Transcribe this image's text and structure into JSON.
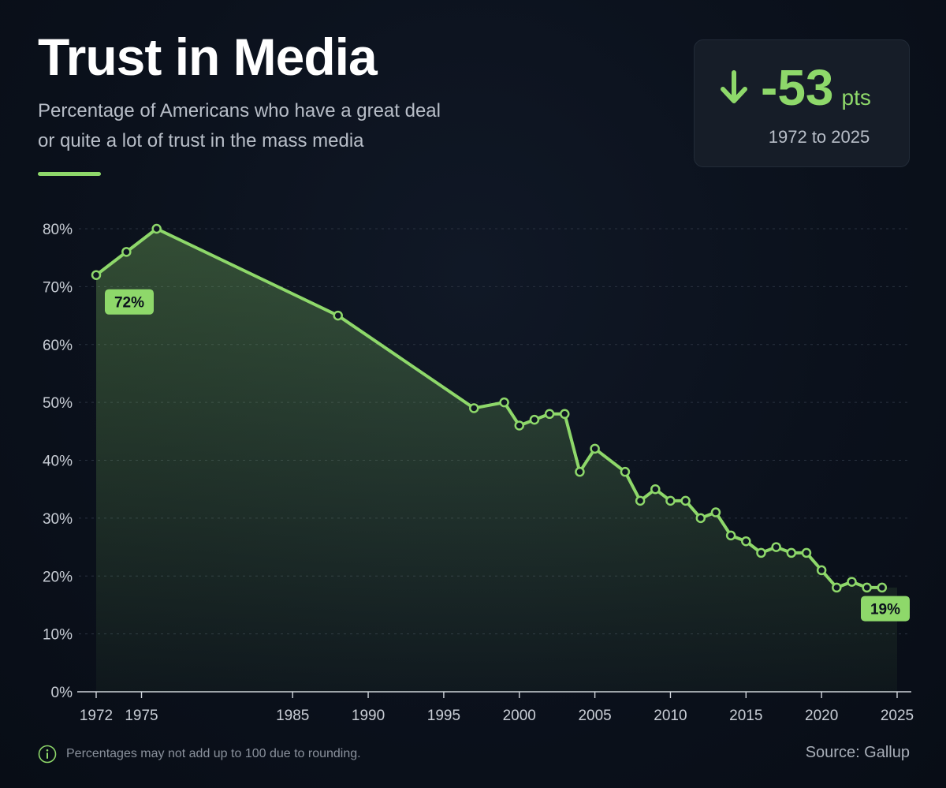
{
  "header": {
    "title": "Trust in Media",
    "subtitle_line1": "Percentage of Americans who have a great deal",
    "subtitle_line2": "or quite a lot of trust in the mass media"
  },
  "stat_card": {
    "icon": "arrow-down-icon",
    "value": "-53",
    "unit": "pts",
    "period": "1972 to 2025"
  },
  "footer": {
    "note_icon": "info-icon",
    "note": "Percentages may not add up to 100 due to rounding.",
    "source": "Source: Gallup"
  },
  "colors": {
    "background": "#0b111c",
    "accent": "#8ed86a",
    "text_primary": "#ffffff",
    "text_secondary": "#b8bec8"
  },
  "chart_data": {
    "type": "area",
    "ylim": [
      0,
      80
    ],
    "xlim": [
      1972,
      2025
    ],
    "yticks": [
      0,
      10,
      20,
      30,
      40,
      50,
      60,
      70,
      80
    ],
    "ytick_labels": [
      "0%",
      "10%",
      "20%",
      "30%",
      "40%",
      "50%",
      "60%",
      "70%",
      "80%"
    ],
    "xticks": [
      1972,
      1975,
      1985,
      1990,
      1995,
      2000,
      2005,
      2010,
      2015,
      2020,
      2025
    ],
    "xtick_labels": [
      "1972",
      "1975",
      "1985",
      "1990",
      "1995",
      "2000",
      "2005",
      "2010",
      "2015",
      "2020",
      "2025"
    ],
    "grid": true,
    "legend": false,
    "series": [
      {
        "x": [
          1972,
          1974,
          1976,
          1988,
          1997,
          1999,
          2000,
          2001,
          2002,
          2003,
          2004,
          2005,
          2007,
          2008,
          2009,
          2010,
          2011,
          2012,
          2013,
          2014,
          2015,
          2016,
          2017,
          2018,
          2019,
          2020,
          2021,
          2022,
          2023,
          2024
        ],
        "y": [
          72,
          76,
          80,
          65,
          49,
          50,
          46,
          47,
          48,
          48,
          38,
          42,
          38,
          33,
          35,
          33,
          33,
          30,
          31,
          27,
          26,
          24,
          25,
          24,
          24,
          21,
          18,
          19,
          18,
          18
        ],
        "color": "#8ed86a"
      }
    ],
    "annotations": [
      {
        "x": 1972,
        "y": 72,
        "text": "72%"
      },
      {
        "x": 2025,
        "y": 19,
        "text": "19%"
      }
    ]
  }
}
